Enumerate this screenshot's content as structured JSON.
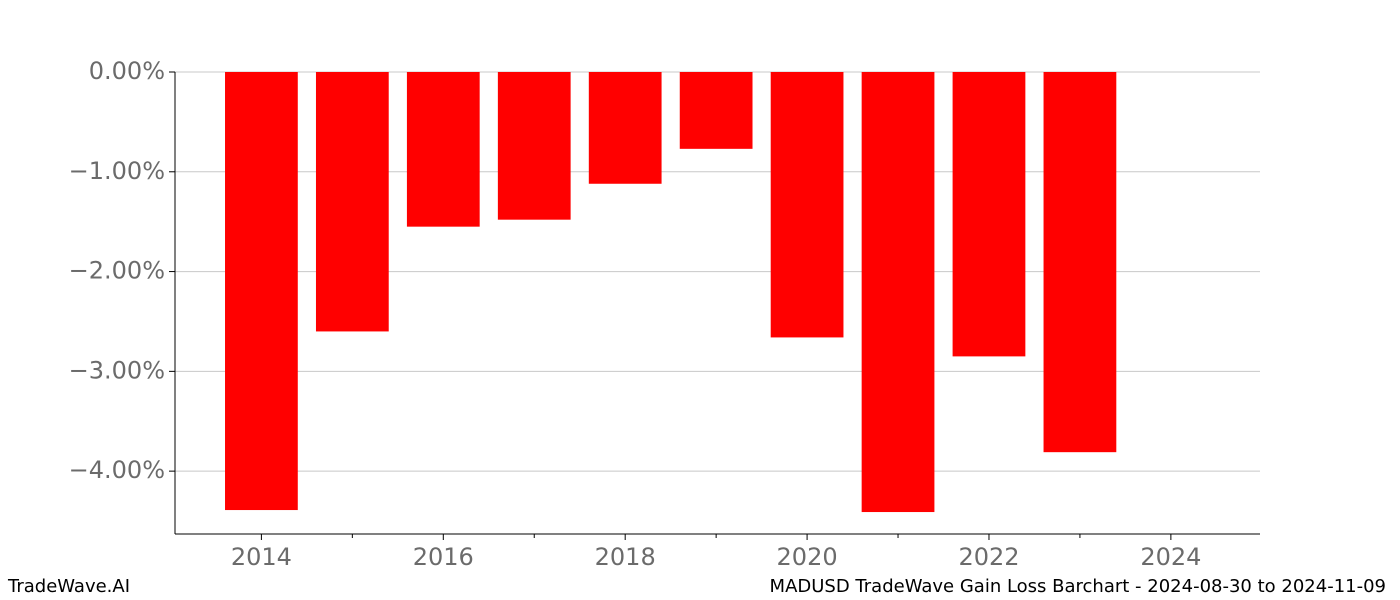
{
  "chart_data": {
    "type": "bar",
    "title": "MADUSD TradeWave Gain Loss Barchart - 2024-08-30 to 2024-11-09",
    "source": "TradeWave.AI",
    "x": [
      2014,
      2015,
      2016,
      2017,
      2018,
      2019,
      2020,
      2021,
      2022,
      2023
    ],
    "values": [
      -4.39,
      -2.6,
      -1.55,
      -1.48,
      -1.12,
      -0.77,
      -2.66,
      -4.41,
      -2.85,
      -3.81
    ],
    "color": "#ff0000",
    "xlim": [
      2013.05,
      2024.98
    ],
    "xticks": [
      2014,
      2016,
      2018,
      2020,
      2022,
      2024
    ],
    "xminorticks": [
      2015,
      2017,
      2019,
      2021,
      2023
    ],
    "ylim": [
      -4.63,
      0
    ],
    "yticks": [
      {
        "value": 0,
        "label": "0.00%"
      },
      {
        "value": -1,
        "label": "−1.00%"
      },
      {
        "value": -2,
        "label": "−2.00%"
      },
      {
        "value": -3,
        "label": "−3.00%"
      },
      {
        "value": -4,
        "label": "−4.00%"
      }
    ],
    "grid": true
  }
}
